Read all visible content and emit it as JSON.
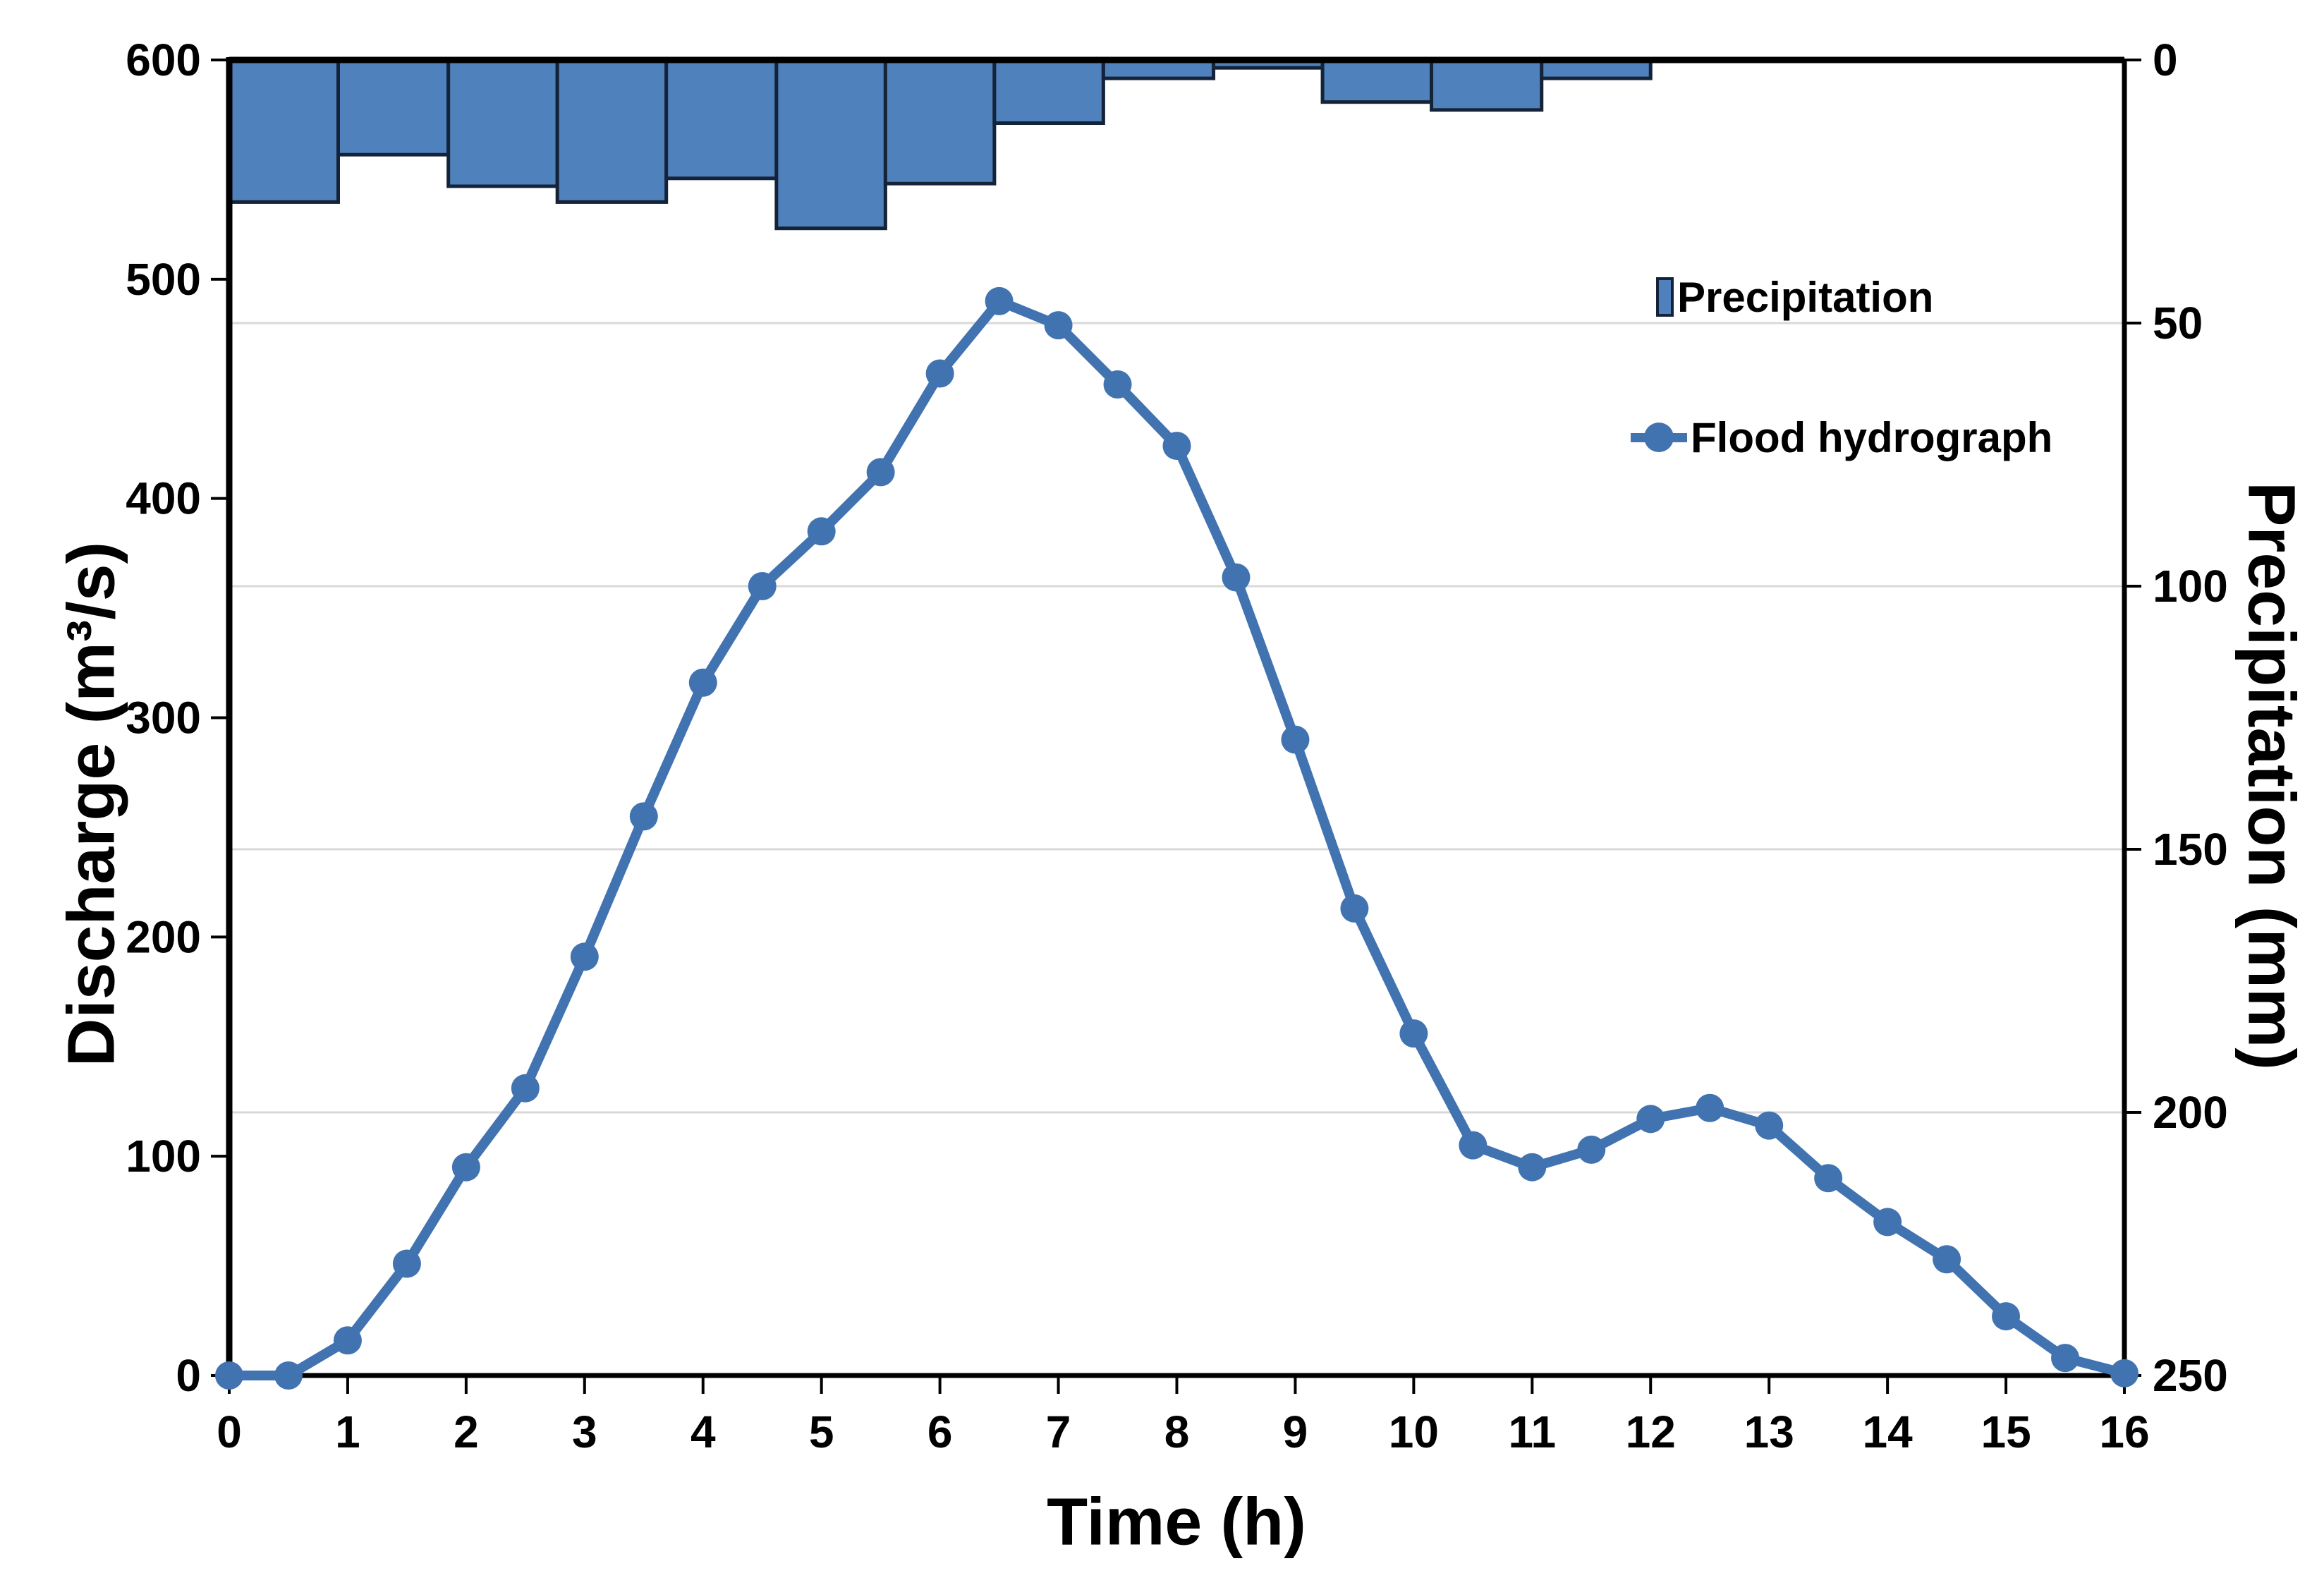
{
  "colors": {
    "background": "#ffffff",
    "bar_fill": "#4f81bd",
    "bar_border": "#152338",
    "line": "#4273b1",
    "gridline": "#d9d9d9",
    "axis": "#000000",
    "text": "#000000"
  },
  "chart_data": {
    "type": "combo",
    "title": "",
    "x_axis": {
      "label": "Time (h)",
      "min": 0,
      "max": 16,
      "tick_step": 1,
      "tick_labels": [
        "0",
        "1",
        "2",
        "3",
        "4",
        "5",
        "6",
        "7",
        "8",
        "9",
        "10",
        "11",
        "12",
        "13",
        "14",
        "15",
        "16"
      ]
    },
    "left_y_axis": {
      "label": "Discharge (m³/s)",
      "min": 0,
      "max": 600,
      "tick_step": 100,
      "tick_values": [
        0,
        100,
        200,
        300,
        400,
        500,
        600
      ],
      "tick_labels": [
        "0",
        "100",
        "200",
        "300",
        "400",
        "500",
        "600"
      ]
    },
    "right_y_axis": {
      "label": "Precipitation (mm)",
      "min": 0,
      "max": 250,
      "tick_step": 50,
      "direction": "inverted-zero-at-top",
      "tick_values": [
        0,
        50,
        100,
        150,
        200,
        250
      ],
      "tick_labels": [
        "0",
        "50",
        "100",
        "150",
        "200",
        "250"
      ],
      "gridline_values": [
        50,
        100,
        150,
        200
      ]
    },
    "legend": {
      "position": "inside-upper-right",
      "items": [
        "Precipitation",
        "Flood hydrograph"
      ]
    },
    "series": [
      {
        "name": "Precipitation",
        "type": "bar",
        "axis": "right",
        "unit": "mm",
        "bars": [
          {
            "t_start": 0.0,
            "t_end": 0.92,
            "value": 27
          },
          {
            "t_start": 0.92,
            "t_end": 1.85,
            "value": 18
          },
          {
            "t_start": 1.85,
            "t_end": 2.77,
            "value": 24
          },
          {
            "t_start": 2.77,
            "t_end": 3.69,
            "value": 27
          },
          {
            "t_start": 3.69,
            "t_end": 4.62,
            "value": 22.5
          },
          {
            "t_start": 4.62,
            "t_end": 5.54,
            "value": 32
          },
          {
            "t_start": 5.54,
            "t_end": 6.46,
            "value": 23.5
          },
          {
            "t_start": 6.46,
            "t_end": 7.38,
            "value": 12
          },
          {
            "t_start": 7.38,
            "t_end": 8.31,
            "value": 3.5
          },
          {
            "t_start": 8.31,
            "t_end": 9.23,
            "value": 1.5
          },
          {
            "t_start": 9.23,
            "t_end": 10.15,
            "value": 8
          },
          {
            "t_start": 10.15,
            "t_end": 11.08,
            "value": 9.5
          },
          {
            "t_start": 11.08,
            "t_end": 12.0,
            "value": 3.5
          }
        ]
      },
      {
        "name": "Flood hydrograph",
        "type": "line",
        "axis": "left",
        "unit": "m³/s",
        "x": [
          0,
          0.5,
          1,
          1.5,
          2,
          2.5,
          3,
          3.5,
          4,
          4.5,
          5,
          5.5,
          6,
          6.5,
          7,
          7.5,
          8,
          8.5,
          9,
          9.5,
          10,
          10.5,
          11,
          11.5,
          12,
          12.5,
          13,
          13.5,
          14,
          14.5,
          15,
          15.5,
          16
        ],
        "y": [
          0,
          0,
          16,
          51,
          95,
          131,
          191,
          255,
          316,
          360,
          385,
          412,
          457,
          490,
          479,
          452,
          424,
          364,
          290,
          213,
          156,
          105,
          95,
          103,
          117,
          122,
          114,
          90,
          70,
          53,
          27,
          8,
          1
        ]
      }
    ]
  }
}
